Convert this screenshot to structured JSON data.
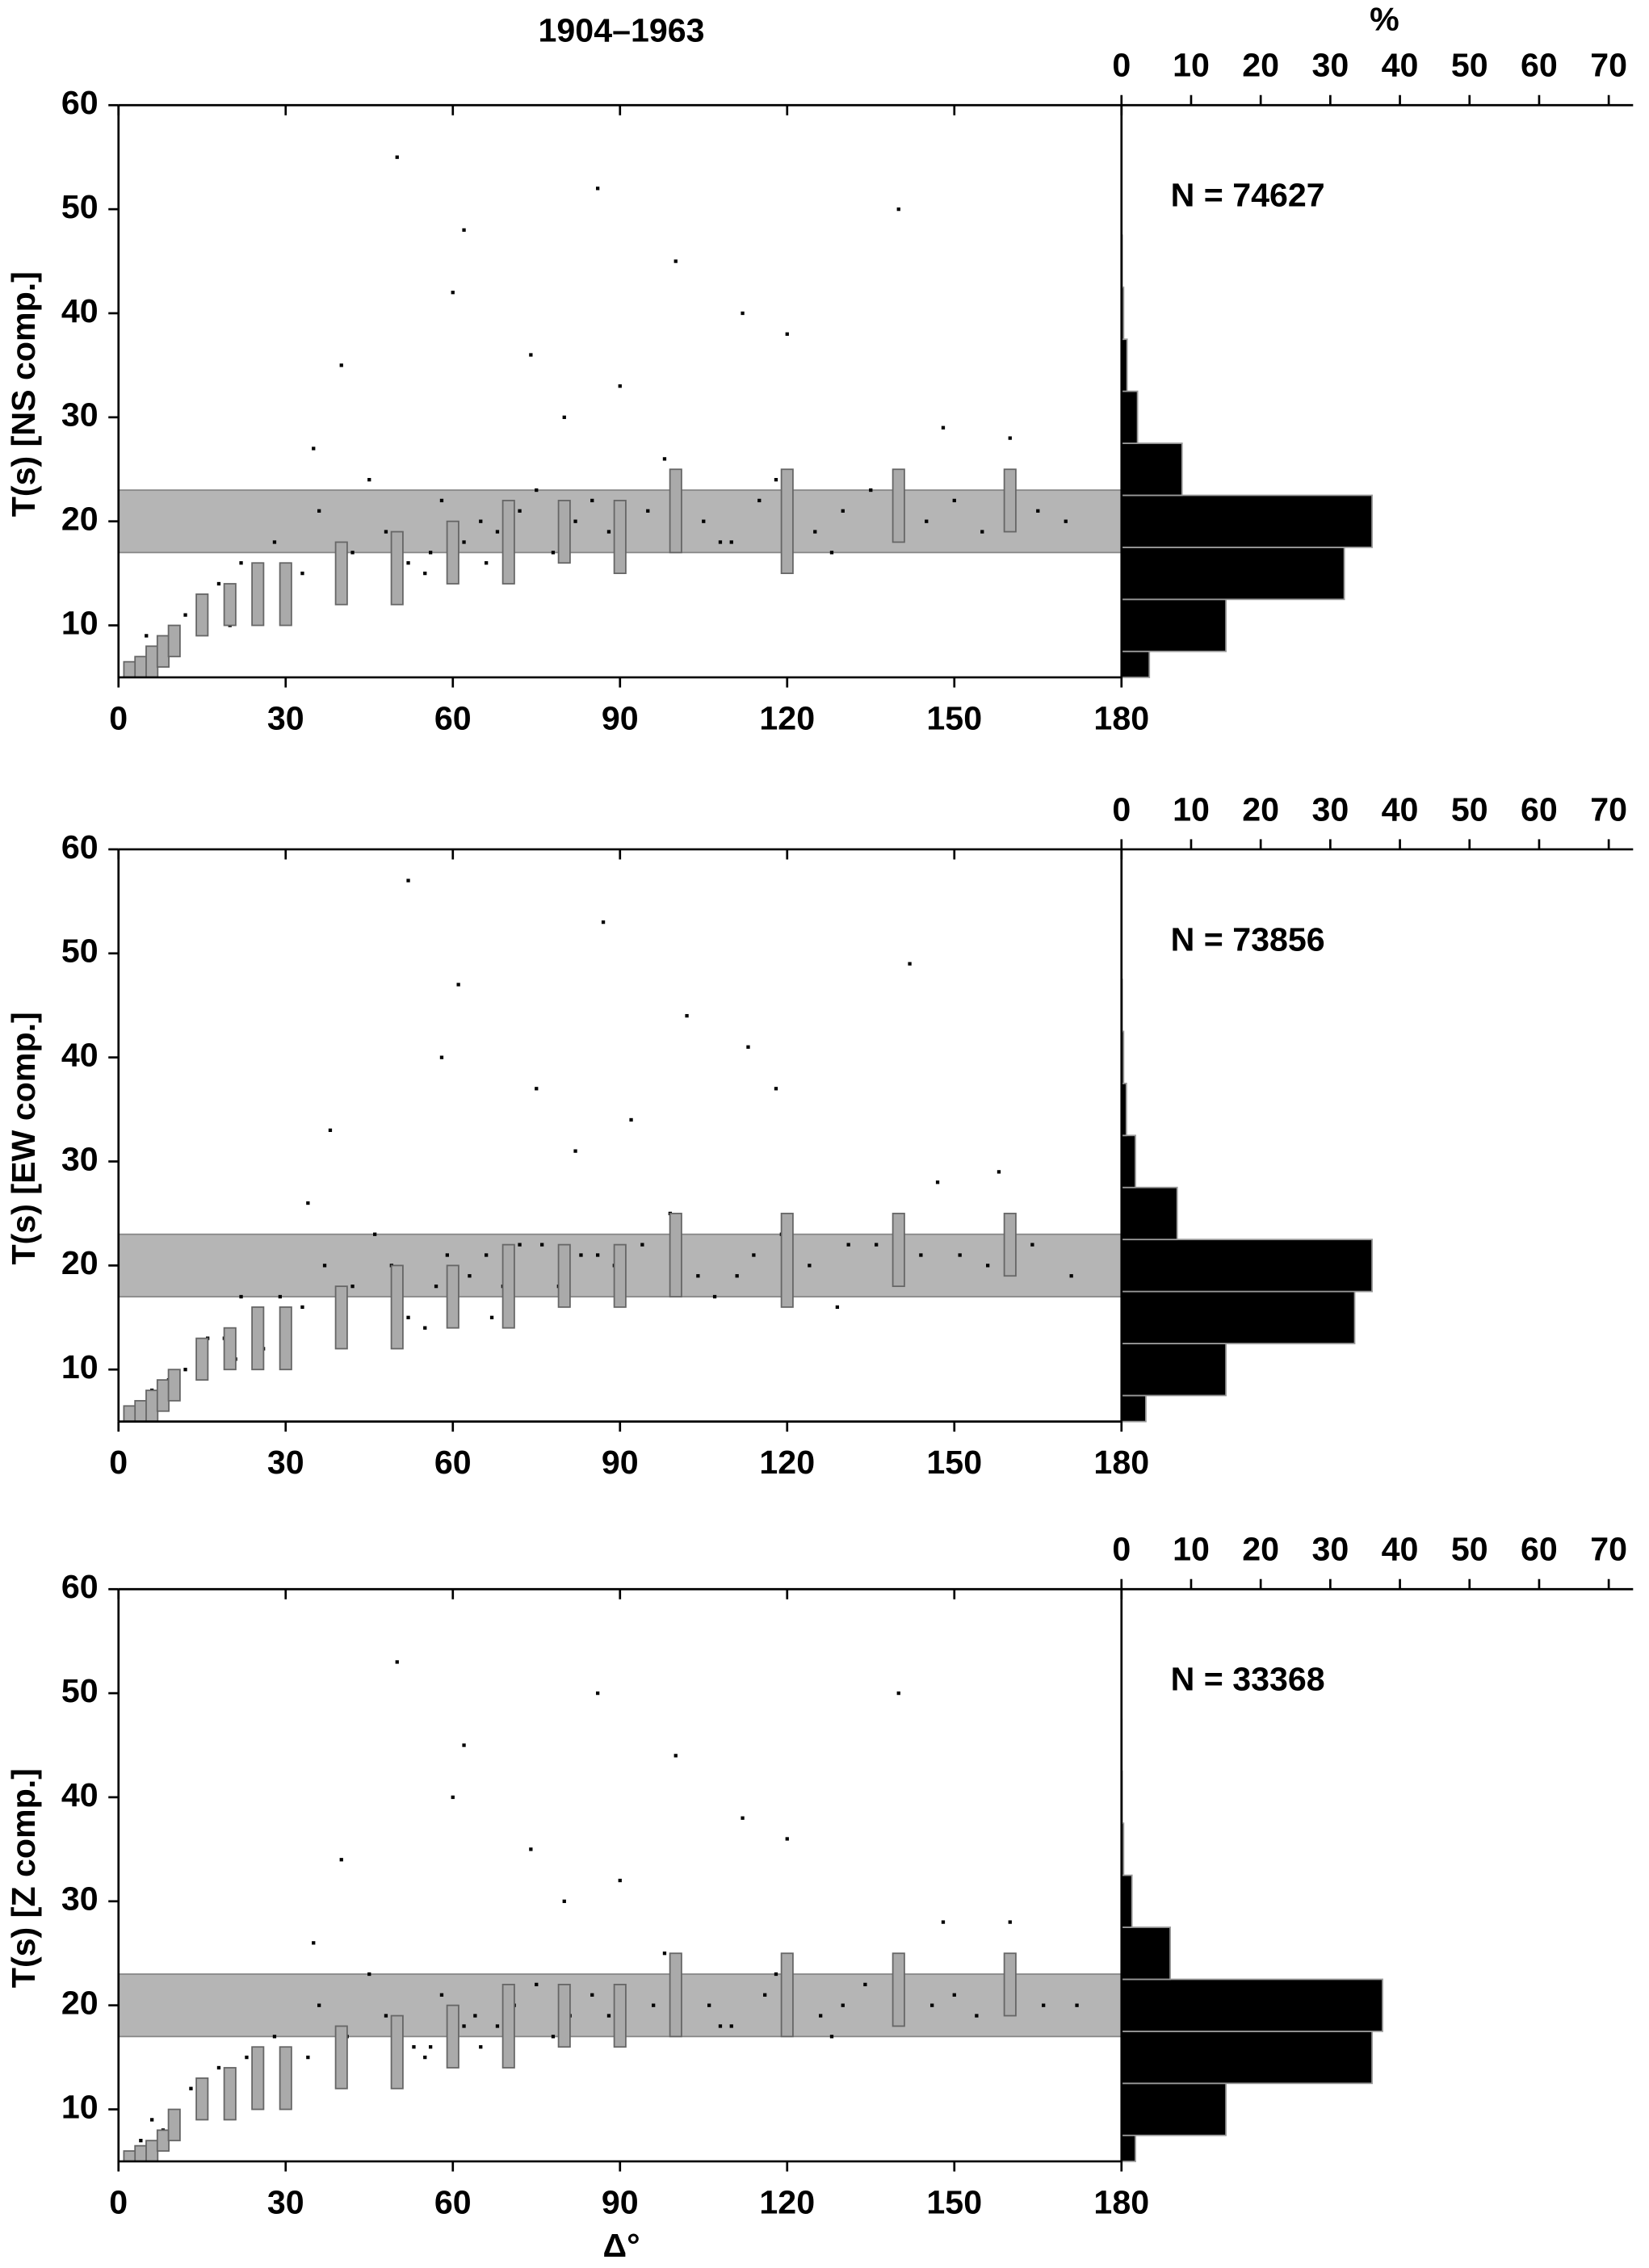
{
  "chart_data": [
    {
      "type": "scatter",
      "title": "1904–1963",
      "ylabel": "T(s) [NS comp.]",
      "annotation": "N = 74627",
      "xlim": [
        0,
        180
      ],
      "xticks": [
        0,
        30,
        60,
        90,
        120,
        150,
        180
      ],
      "ylim": [
        5,
        60
      ],
      "yticks": [
        10,
        20,
        30,
        40,
        50,
        60
      ],
      "band": [
        17,
        23
      ],
      "x": [
        3,
        5,
        8,
        12,
        15,
        18,
        22,
        25,
        28,
        33,
        36,
        42,
        45,
        48,
        52,
        55,
        56,
        58,
        62,
        65,
        68,
        72,
        75,
        78,
        82,
        85,
        88,
        95,
        98,
        105,
        110,
        115,
        118,
        125,
        130,
        135,
        145,
        150,
        155,
        165,
        170,
        40,
        60,
        80,
        100,
        120,
        140,
        160,
        50,
        90,
        20,
        35,
        66,
        108,
        128,
        148,
        62,
        74,
        86,
        112
      ],
      "y": [
        6,
        9,
        8,
        11,
        12,
        14,
        16,
        13,
        18,
        15,
        21,
        17,
        24,
        19,
        16,
        15,
        17,
        22,
        18,
        20,
        19,
        21,
        23,
        17,
        20,
        22,
        19,
        21,
        26,
        20,
        18,
        22,
        24,
        19,
        21,
        23,
        20,
        22,
        19,
        21,
        20,
        35,
        42,
        30,
        45,
        38,
        50,
        28,
        55,
        33,
        10,
        27,
        16,
        18,
        17,
        29,
        48,
        36,
        52,
        40
      ],
      "range_bars": {
        "x": [
          2,
          4,
          6,
          8,
          10,
          15,
          20,
          25,
          30,
          40,
          50,
          60,
          70,
          80,
          90,
          100,
          120,
          140,
          160
        ],
        "low": [
          5,
          5,
          5,
          6,
          7,
          9,
          10,
          10,
          10,
          12,
          12,
          14,
          14,
          16,
          15,
          17,
          15,
          18,
          19
        ],
        "high": [
          6.5,
          7,
          8,
          9,
          10,
          13,
          14,
          16,
          16,
          18,
          19,
          20,
          22,
          22,
          22,
          25,
          25,
          25,
          25
        ]
      },
      "histogram": {
        "label": "%",
        "xlim": [
          0,
          73.5
        ],
        "xticks": [
          0,
          10,
          20,
          30,
          40,
          50,
          60,
          70
        ],
        "bins": [
          5,
          7.5,
          12.5,
          17.5,
          22.5,
          27.5,
          32.5,
          37.5,
          42.5,
          47.5
        ],
        "values": [
          4,
          15,
          32,
          36,
          8.7,
          2.3,
          0.8,
          0.3,
          0.1
        ]
      }
    },
    {
      "type": "scatter",
      "ylabel": "T(s) [EW comp.]",
      "annotation": "N = 73856",
      "xlim": [
        0,
        180
      ],
      "xticks": [
        0,
        30,
        60,
        90,
        120,
        150,
        180
      ],
      "ylim": [
        5,
        60
      ],
      "yticks": [
        10,
        20,
        30,
        40,
        50,
        60
      ],
      "band": [
        17,
        23
      ],
      "x": [
        3,
        6,
        9,
        12,
        16,
        19,
        22,
        26,
        29,
        33,
        37,
        42,
        46,
        49,
        52,
        55,
        57,
        59,
        63,
        66,
        69,
        72,
        76,
        79,
        83,
        86,
        89,
        94,
        99,
        104,
        111,
        114,
        119,
        124,
        131,
        136,
        144,
        151,
        156,
        164,
        171,
        38,
        58,
        82,
        102,
        118,
        142,
        158,
        52,
        92,
        21,
        34,
        67,
        107,
        129,
        147,
        61,
        75,
        87,
        113
      ],
      "y": [
        6,
        8,
        9,
        10,
        13,
        13,
        17,
        12,
        17,
        16,
        20,
        18,
        23,
        20,
        15,
        14,
        18,
        21,
        19,
        21,
        18,
        22,
        22,
        18,
        21,
        21,
        20,
        22,
        25,
        19,
        19,
        21,
        23,
        20,
        22,
        22,
        21,
        21,
        20,
        22,
        19,
        33,
        40,
        31,
        44,
        37,
        49,
        29,
        57,
        34,
        11,
        26,
        15,
        17,
        16,
        28,
        47,
        37,
        53,
        41
      ],
      "range_bars": {
        "x": [
          2,
          4,
          6,
          8,
          10,
          15,
          20,
          25,
          30,
          40,
          50,
          60,
          70,
          80,
          90,
          100,
          120,
          140,
          160
        ],
        "low": [
          5,
          5,
          5,
          6,
          7,
          9,
          10,
          10,
          10,
          12,
          12,
          14,
          14,
          16,
          16,
          17,
          16,
          18,
          19
        ],
        "high": [
          6.5,
          7,
          8,
          9,
          10,
          13,
          14,
          16,
          16,
          18,
          20,
          20,
          22,
          22,
          22,
          25,
          25,
          25,
          25
        ]
      },
      "histogram": {
        "xlim": [
          0,
          73.5
        ],
        "xticks": [
          0,
          10,
          20,
          30,
          40,
          50,
          60,
          70
        ],
        "bins": [
          5,
          7.5,
          12.5,
          17.5,
          22.5,
          27.5,
          32.5,
          37.5,
          42.5,
          47.5
        ],
        "values": [
          3.5,
          15,
          33.5,
          36,
          8,
          2,
          0.7,
          0.3,
          0.1
        ]
      }
    },
    {
      "type": "scatter",
      "ylabel": "T(s) [Z comp.]",
      "annotation": "N = 33368",
      "xlabel": "Δ°",
      "xlim": [
        0,
        180
      ],
      "xticks": [
        0,
        30,
        60,
        90,
        120,
        150,
        180
      ],
      "ylim": [
        5,
        60
      ],
      "yticks": [
        10,
        20,
        30,
        40,
        50,
        60
      ],
      "band": [
        17,
        23
      ],
      "x": [
        4,
        6,
        8,
        13,
        15,
        18,
        23,
        25,
        28,
        34,
        36,
        41,
        45,
        48,
        53,
        55,
        56,
        58,
        62,
        64,
        68,
        71,
        75,
        78,
        81,
        85,
        88,
        96,
        98,
        106,
        110,
        116,
        118,
        126,
        130,
        134,
        146,
        150,
        154,
        166,
        172,
        40,
        60,
        80,
        100,
        120,
        140,
        160,
        50,
        90,
        20,
        35,
        65,
        108,
        128,
        148,
        62,
        74,
        86,
        112
      ],
      "y": [
        7,
        9,
        8,
        12,
        12,
        14,
        15,
        13,
        17,
        15,
        20,
        17,
        23,
        19,
        16,
        15,
        16,
        21,
        18,
        19,
        18,
        20,
        22,
        17,
        19,
        21,
        19,
        20,
        25,
        20,
        18,
        21,
        23,
        19,
        20,
        22,
        20,
        21,
        19,
        20,
        20,
        34,
        40,
        30,
        44,
        36,
        50,
        28,
        53,
        32,
        11,
        26,
        16,
        18,
        17,
        28,
        45,
        35,
        50,
        38
      ],
      "range_bars": {
        "x": [
          2,
          4,
          6,
          8,
          10,
          15,
          20,
          25,
          30,
          40,
          50,
          60,
          70,
          80,
          90,
          100,
          120,
          140,
          160
        ],
        "low": [
          5,
          5,
          5,
          6,
          7,
          9,
          9,
          10,
          10,
          12,
          12,
          14,
          14,
          16,
          16,
          17,
          17,
          18,
          19
        ],
        "high": [
          6,
          6.5,
          7,
          8,
          10,
          13,
          14,
          16,
          16,
          18,
          19,
          20,
          22,
          22,
          22,
          25,
          25,
          25,
          25
        ]
      },
      "histogram": {
        "xlim": [
          0,
          73.5
        ],
        "xticks": [
          0,
          10,
          20,
          30,
          40,
          50,
          60,
          70
        ],
        "bins": [
          5,
          7.5,
          12.5,
          17.5,
          22.5,
          27.5,
          32.5,
          37.5,
          42.5,
          47.5
        ],
        "values": [
          2,
          15,
          36,
          37.5,
          7,
          1.5,
          0.3,
          0.1,
          0.05
        ]
      }
    }
  ]
}
